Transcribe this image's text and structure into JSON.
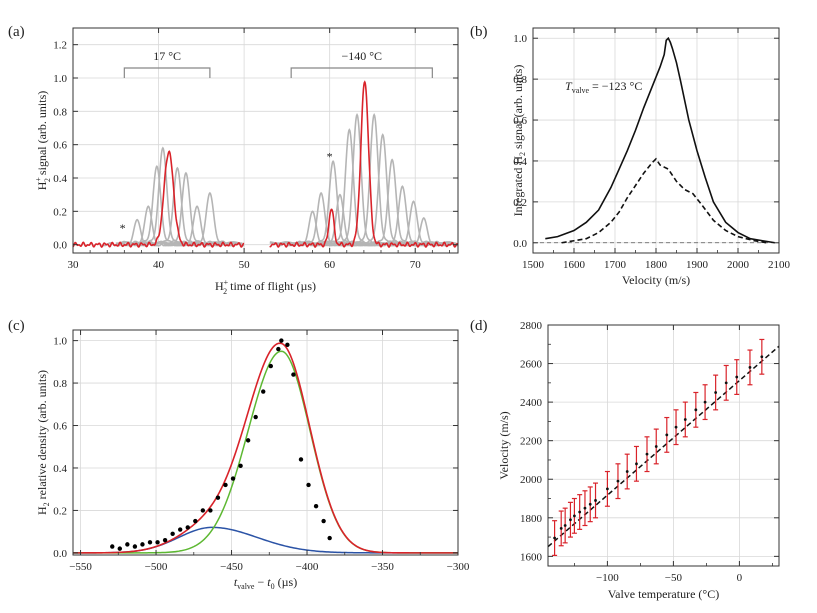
{
  "chart_data": [
    {
      "panel": "(a)",
      "type": "line",
      "xlabel": "H2+ time of flight (µs)",
      "ylabel": "H2+ signal (arb. units)",
      "xlim": [
        30,
        75
      ],
      "ylim": [
        -0.05,
        1.3
      ],
      "xticks": [
        30,
        40,
        50,
        60,
        70
      ],
      "yticks": [
        0.0,
        0.2,
        0.4,
        0.6,
        0.8,
        1.0,
        1.2
      ],
      "annotations": {
        "left_bracket": "17 °C",
        "right_bracket": "−140 °C",
        "marker": "*"
      },
      "bracket_ranges": [
        [
          36,
          46
        ],
        [
          55.5,
          72
        ]
      ],
      "star_positions": [
        [
          35.8,
          0.1
        ],
        [
          60,
          0.53
        ]
      ],
      "series": [
        {
          "name": "17 °C selected (red)",
          "color": "#d9232a",
          "segment": [
            30,
            50
          ],
          "peaks": [
            {
              "center": 41.2,
              "height": 0.56,
              "width": 0.55
            }
          ],
          "noise_level": 0.01
        },
        {
          "name": "−140 °C selected (red)",
          "color": "#d9232a",
          "segment": [
            53,
            75
          ],
          "peaks": [
            {
              "center": 60.2,
              "height": 0.22,
              "width": 0.28
            },
            {
              "center": 64.1,
              "height": 0.98,
              "width": 0.45
            }
          ],
          "noise_level": 0.01
        },
        {
          "name": "17 °C other velocities (gray)",
          "color": "#b5b5b5",
          "segment": [
            30,
            50
          ],
          "peaks": [
            {
              "center": 37.5,
              "height": 0.12
            },
            {
              "center": 38.8,
              "height": 0.2
            },
            {
              "center": 39.8,
              "height": 0.44
            },
            {
              "center": 40.5,
              "height": 0.55
            },
            {
              "center": 42.2,
              "height": 0.43
            },
            {
              "center": 43.2,
              "height": 0.4
            },
            {
              "center": 44.5,
              "height": 0.2
            },
            {
              "center": 46.0,
              "height": 0.28
            }
          ]
        },
        {
          "name": "−140 °C other velocities (gray)",
          "color": "#b5b5b5",
          "segment": [
            53,
            75
          ],
          "peaks": [
            {
              "center": 58.0,
              "height": 0.17
            },
            {
              "center": 59.0,
              "height": 0.28
            },
            {
              "center": 60.4,
              "height": 0.47
            },
            {
              "center": 61.2,
              "height": 0.27
            },
            {
              "center": 62.3,
              "height": 0.66
            },
            {
              "center": 63.2,
              "height": 0.75
            },
            {
              "center": 65.2,
              "height": 0.75
            },
            {
              "center": 66.2,
              "height": 0.63
            },
            {
              "center": 67.3,
              "height": 0.48
            },
            {
              "center": 68.5,
              "height": 0.32
            },
            {
              "center": 69.8,
              "height": 0.23
            },
            {
              "center": 71.0,
              "height": 0.13
            }
          ]
        }
      ]
    },
    {
      "panel": "(b)",
      "type": "line",
      "xlabel": "Velocity (m/s)",
      "ylabel": "Integrated H2 signal (arb. units)",
      "xlim": [
        1500,
        2100
      ],
      "ylim": [
        -0.05,
        1.05
      ],
      "xticks": [
        1500,
        1600,
        1700,
        1800,
        1900,
        2000,
        2100
      ],
      "yticks": [
        0.0,
        0.2,
        0.4,
        0.6,
        0.8,
        1.0
      ],
      "annotation": "Tvalve = −123 °C",
      "series": [
        {
          "name": "solid",
          "style": "solid",
          "x": [
            1530,
            1560,
            1600,
            1630,
            1660,
            1690,
            1710,
            1730,
            1750,
            1770,
            1790,
            1800,
            1810,
            1820,
            1825,
            1830,
            1835,
            1840,
            1850,
            1860,
            1880,
            1900,
            1920,
            1940,
            1970,
            2000,
            2030,
            2060,
            2090
          ],
          "y": [
            0.02,
            0.03,
            0.06,
            0.1,
            0.16,
            0.27,
            0.36,
            0.45,
            0.55,
            0.66,
            0.76,
            0.81,
            0.86,
            0.92,
            0.99,
            1.0,
            0.98,
            0.95,
            0.88,
            0.79,
            0.6,
            0.45,
            0.32,
            0.2,
            0.1,
            0.05,
            0.02,
            0.01,
            0.0
          ]
        },
        {
          "name": "dashed",
          "style": "dashed",
          "x": [
            1570,
            1600,
            1630,
            1660,
            1690,
            1710,
            1730,
            1750,
            1770,
            1790,
            1800,
            1810,
            1830,
            1850,
            1870,
            1890,
            1910,
            1940,
            1970,
            2000,
            2040,
            2070
          ],
          "y": [
            0.0,
            0.01,
            0.02,
            0.05,
            0.1,
            0.15,
            0.22,
            0.28,
            0.34,
            0.39,
            0.41,
            0.38,
            0.36,
            0.3,
            0.26,
            0.24,
            0.19,
            0.11,
            0.06,
            0.03,
            0.01,
            0.0
          ]
        }
      ]
    },
    {
      "panel": "(c)",
      "type": "line",
      "xlabel": "tvalve − t0 (µs)",
      "ylabel": "H2 relative density (arb. units)",
      "xlim": [
        -555,
        -300
      ],
      "ylim": [
        -0.01,
        1.05
      ],
      "xticks": [
        -550,
        -500,
        -450,
        -400,
        -350,
        -300
      ],
      "yticks": [
        0.0,
        0.2,
        0.4,
        0.6,
        0.8,
        1.0
      ],
      "series": [
        {
          "name": "fit component 1 (green)",
          "color": "#5db832",
          "gaussian": {
            "amp": 0.95,
            "center": -417,
            "sigma_left": 22,
            "sigma_right": 19
          }
        },
        {
          "name": "fit component 2 (blue)",
          "color": "#2b53a6",
          "gaussian": {
            "amp": 0.12,
            "center": -463,
            "sigma_left": 22,
            "sigma_right": 30
          }
        },
        {
          "name": "total fit (red)",
          "color": "#d9232a",
          "sum_of": [
            0,
            1
          ]
        },
        {
          "name": "data (points)",
          "type": "scatter",
          "x": [
            -529,
            -524,
            -519,
            -514,
            -509,
            -504,
            -499,
            -494,
            -489,
            -484,
            -479,
            -474,
            -469,
            -464,
            -459,
            -454,
            -449,
            -444,
            -439,
            -434,
            -429,
            -424,
            -419,
            -417,
            -413,
            -409,
            -404,
            -399,
            -394,
            -389,
            -385
          ],
          "y": [
            0.03,
            0.02,
            0.04,
            0.03,
            0.04,
            0.05,
            0.05,
            0.06,
            0.09,
            0.11,
            0.12,
            0.15,
            0.2,
            0.2,
            0.26,
            0.32,
            0.35,
            0.41,
            0.53,
            0.64,
            0.76,
            0.88,
            0.96,
            1.0,
            0.98,
            0.84,
            0.44,
            0.32,
            0.22,
            0.15,
            0.07
          ]
        }
      ]
    },
    {
      "panel": "(d)",
      "type": "scatter",
      "xlabel": "Valve temperature (°C)",
      "ylabel": "Velocity (m/s)",
      "xlim": [
        -145,
        30
      ],
      "ylim": [
        1550,
        2800
      ],
      "xticks": [
        -100,
        -50,
        0
      ],
      "yticks": [
        1600,
        1800,
        2000,
        2200,
        2400,
        2600,
        2800
      ],
      "fit_line": {
        "x": [
          -145,
          30
        ],
        "y": [
          1650,
          2690
        ],
        "style": "dashed"
      },
      "series": [
        {
          "name": "measurements",
          "color": "#d9232a",
          "x": [
            -140,
            -135,
            -132,
            -128,
            -125,
            -121,
            -117,
            -113,
            -109,
            -100,
            -92,
            -85,
            -78,
            -70,
            -63,
            -55,
            -48,
            -41,
            -33,
            -26,
            -18,
            -10,
            -2,
            8,
            17
          ],
          "y": [
            1695,
            1745,
            1760,
            1790,
            1810,
            1830,
            1850,
            1870,
            1890,
            1950,
            1990,
            2040,
            2080,
            2130,
            2170,
            2230,
            2270,
            2310,
            2360,
            2400,
            2450,
            2500,
            2530,
            2580,
            2635
          ],
          "err": [
            90,
            90,
            90,
            90,
            90,
            90,
            90,
            90,
            90,
            90,
            90,
            90,
            90,
            90,
            90,
            90,
            90,
            90,
            90,
            90,
            90,
            90,
            90,
            90,
            90
          ]
        }
      ]
    }
  ]
}
